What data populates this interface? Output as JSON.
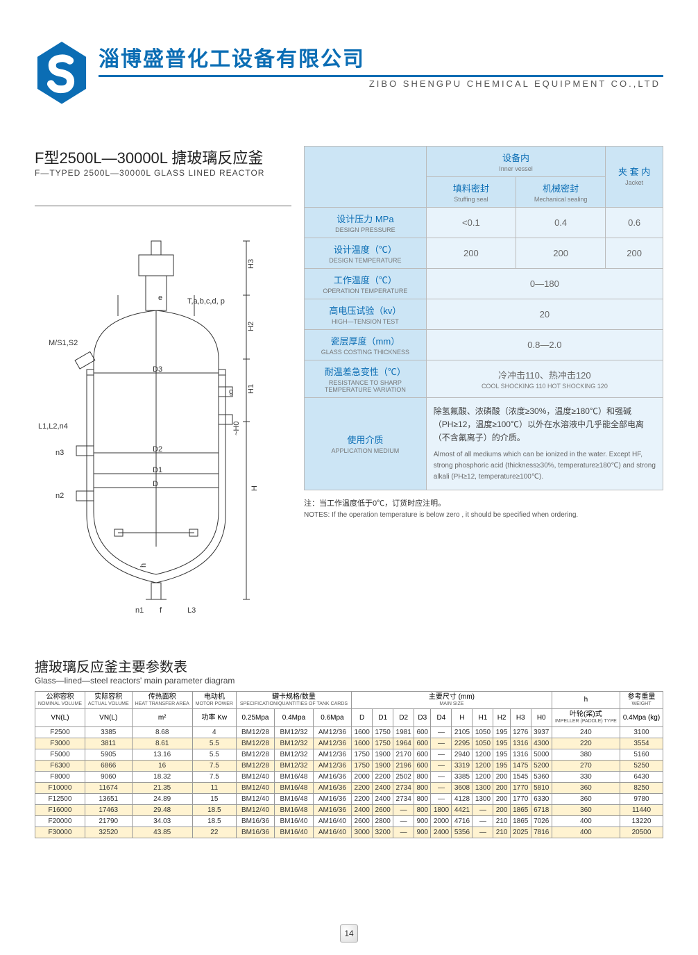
{
  "header": {
    "company_cn": "淄博盛普化工设备有限公司",
    "company_en": "ZIBO SHENGPU CHEMICAL EQUIPMENT CO.,LTD"
  },
  "title": {
    "cn": "F型2500L—30000L 搪玻璃反应釜",
    "en": "F—TYPED 2500L—30000L GLASS LINED REACTOR"
  },
  "diagram_labels": {
    "m_s": "M/S1,S2",
    "e": "e",
    "t": "T,a,b,c,d, p",
    "l1": "L1,L2,n4",
    "n3": "n3",
    "n2": "n2",
    "n1": "n1",
    "f": "f",
    "l3": "L3",
    "d3": "D3",
    "d2": "D2",
    "d1": "D1",
    "d": "D",
    "g": "g",
    "h3": "H3",
    "h2": "H2",
    "h1": "H1",
    "h0": "~H0",
    "h": "H",
    "hh": "h"
  },
  "spec_table": {
    "inner_vessel_cn": "设备内",
    "inner_vessel_en": "Inner vessel",
    "jacket_cn": "夹\n套\n内",
    "jacket_en": "Jacket",
    "stuffing_cn": "填料密封",
    "stuffing_en": "Stuffing seal",
    "mech_cn": "机械密封",
    "mech_en": "Mechanical sealing",
    "rows": [
      {
        "cn": "设计压力 MPa",
        "en": "DESIGN PRESSURE",
        "v1": "<0.1",
        "v2": "0.4",
        "v3": "0.6"
      },
      {
        "cn": "设计温度（℃）",
        "en": "DESIGN TEMPERATURE",
        "v1": "200",
        "v2": "200",
        "v3": "200"
      },
      {
        "cn": "工作温度（℃）",
        "en": "OPERATION TEMPERATURE",
        "span": "0—180"
      },
      {
        "cn": "高电压试验（kv）",
        "en": "HIGH—TENSION TEST",
        "span": "20"
      },
      {
        "cn": "瓷层厚度（mm）",
        "en": "GLASS COSTING THICKNESS",
        "span": "0.8—2.0"
      },
      {
        "cn": "耐温差急变性（℃）",
        "en": "RESISTANCE TO SHARP TEMPERATURE VARIATION",
        "span_cn": "冷冲击110、热冲击120",
        "span_en": "COOL SHOCKING 110 HOT SHOCKING 120"
      }
    ],
    "medium_label_cn": "使用介质",
    "medium_label_en": "APPLICATION MEDIUM",
    "medium_cn": "除氢氟酸、浓磷酸（浓度≥30%，温度≥180℃）和强碱（PH≥12，温度≥100℃）以外在水溶液中几乎能全部电离（不含氟离子）的介质。",
    "medium_en": "Almost of all mediums which can be ionized in the water. Except HF, strong phosphoric acid (thickness≥30%, temperature≥180℃) and strong alkali (PH≥12, temperature≥100℃).",
    "note_cn": "注：当工作温度低于0℃，订货时应注明。",
    "note_en": "NOTES: If the operation temperature is below zero , it should be specified when ordering."
  },
  "param_title": {
    "cn": "搪玻璃反应釜主要参数表",
    "en": "Glass—lined—steel reactors' main parameter diagram"
  },
  "param_header": {
    "c0": {
      "cn": "公称容积",
      "en": "NOMINAL VOLUME",
      "u": "VN(L)"
    },
    "c1": {
      "cn": "实际容积",
      "en": "ACTUAL VOLUME",
      "u": "VN(L)"
    },
    "c2": {
      "cn": "传热面积",
      "en": "HEAT TRANSFER AREA",
      "u": "m²"
    },
    "c3": {
      "cn": "电动机",
      "en": "MOTOR POWER",
      "u": "功率 Kw"
    },
    "spec_cn": "罐卡规格/数量",
    "spec_en": "SPECIFICATION/QUANTITIES OF TANK CARDS",
    "spec_cols": [
      "0.25Mpa",
      "0.4Mpa",
      "0.6Mpa"
    ],
    "size_cn": "主要尺寸 (mm)",
    "size_en": "MAIN SIZE",
    "size_cols": [
      "D",
      "D1",
      "D2",
      "D3",
      "D4",
      "H",
      "H1",
      "H2",
      "H3",
      "H0"
    ],
    "h_cn": "h",
    "h_sub_cn": "叶轮(桨)式",
    "h_sub_en": "IMPELLER (PADDLE) TYPE",
    "w_cn": "参考重量",
    "w_en": "WEIGHT",
    "w_sub": "0.4Mpa (kg)"
  },
  "param_rows": [
    {
      "hl": false,
      "c": [
        "F2500",
        "3385",
        "8.68",
        "4",
        "BM12/28",
        "BM12/32",
        "AM12/36",
        "1600",
        "1750",
        "1981",
        "600",
        "—",
        "2105",
        "1050",
        "195",
        "1276",
        "3937",
        "240",
        "3100"
      ]
    },
    {
      "hl": true,
      "c": [
        "F3000",
        "3811",
        "8.61",
        "5.5",
        "BM12/28",
        "BM12/32",
        "AM12/36",
        "1600",
        "1750",
        "1964",
        "600",
        "—",
        "2295",
        "1050",
        "195",
        "1316",
        "4300",
        "220",
        "3554"
      ]
    },
    {
      "hl": false,
      "c": [
        "F5000",
        "5905",
        "13.16",
        "5.5",
        "BM12/28",
        "BM12/32",
        "AM12/36",
        "1750",
        "1900",
        "2170",
        "600",
        "—",
        "2940",
        "1200",
        "195",
        "1316",
        "5000",
        "380",
        "5160"
      ]
    },
    {
      "hl": true,
      "c": [
        "F6300",
        "6866",
        "16",
        "7.5",
        "BM12/28",
        "BM12/32",
        "AM12/36",
        "1750",
        "1900",
        "2196",
        "600",
        "—",
        "3319",
        "1200",
        "195",
        "1475",
        "5200",
        "270",
        "5250"
      ]
    },
    {
      "hl": false,
      "c": [
        "F8000",
        "9060",
        "18.32",
        "7.5",
        "BM12/40",
        "BM16/48",
        "AM16/36",
        "2000",
        "2200",
        "2502",
        "800",
        "—",
        "3385",
        "1200",
        "200",
        "1545",
        "5360",
        "330",
        "6430"
      ]
    },
    {
      "hl": true,
      "c": [
        "F10000",
        "11674",
        "21.35",
        "11",
        "BM12/40",
        "BM16/48",
        "AM16/36",
        "2200",
        "2400",
        "2734",
        "800",
        "—",
        "3608",
        "1300",
        "200",
        "1770",
        "5810",
        "360",
        "8250"
      ]
    },
    {
      "hl": false,
      "c": [
        "F12500",
        "13651",
        "24.89",
        "15",
        "BM12/40",
        "BM16/48",
        "AM16/36",
        "2200",
        "2400",
        "2734",
        "800",
        "—",
        "4128",
        "1300",
        "200",
        "1770",
        "6330",
        "360",
        "9780"
      ]
    },
    {
      "hl": true,
      "c": [
        "F16000",
        "17463",
        "29.48",
        "18.5",
        "BM12/40",
        "BM16/48",
        "AM16/36",
        "2400",
        "2600",
        "—",
        "800",
        "1800",
        "4421",
        "—",
        "200",
        "1865",
        "6718",
        "360",
        "11440"
      ]
    },
    {
      "hl": false,
      "c": [
        "F20000",
        "21790",
        "34.03",
        "18.5",
        "BM16/36",
        "BM16/40",
        "AM16/40",
        "2600",
        "2800",
        "—",
        "900",
        "2000",
        "4716",
        "—",
        "210",
        "1865",
        "7026",
        "400",
        "13220"
      ]
    },
    {
      "hl": true,
      "c": [
        "F30000",
        "32520",
        "43.85",
        "22",
        "BM16/36",
        "BM16/40",
        "AM16/40",
        "3000",
        "3200",
        "—",
        "900",
        "2400",
        "5356",
        "—",
        "210",
        "2025",
        "7816",
        "400",
        "20500"
      ]
    }
  ],
  "page_number": "14",
  "colors": {
    "brand": "#0b6db4",
    "spec_hdr": "#cce5f5",
    "spec_body": "#e8f3fb",
    "highlight": "#fff3d1"
  }
}
